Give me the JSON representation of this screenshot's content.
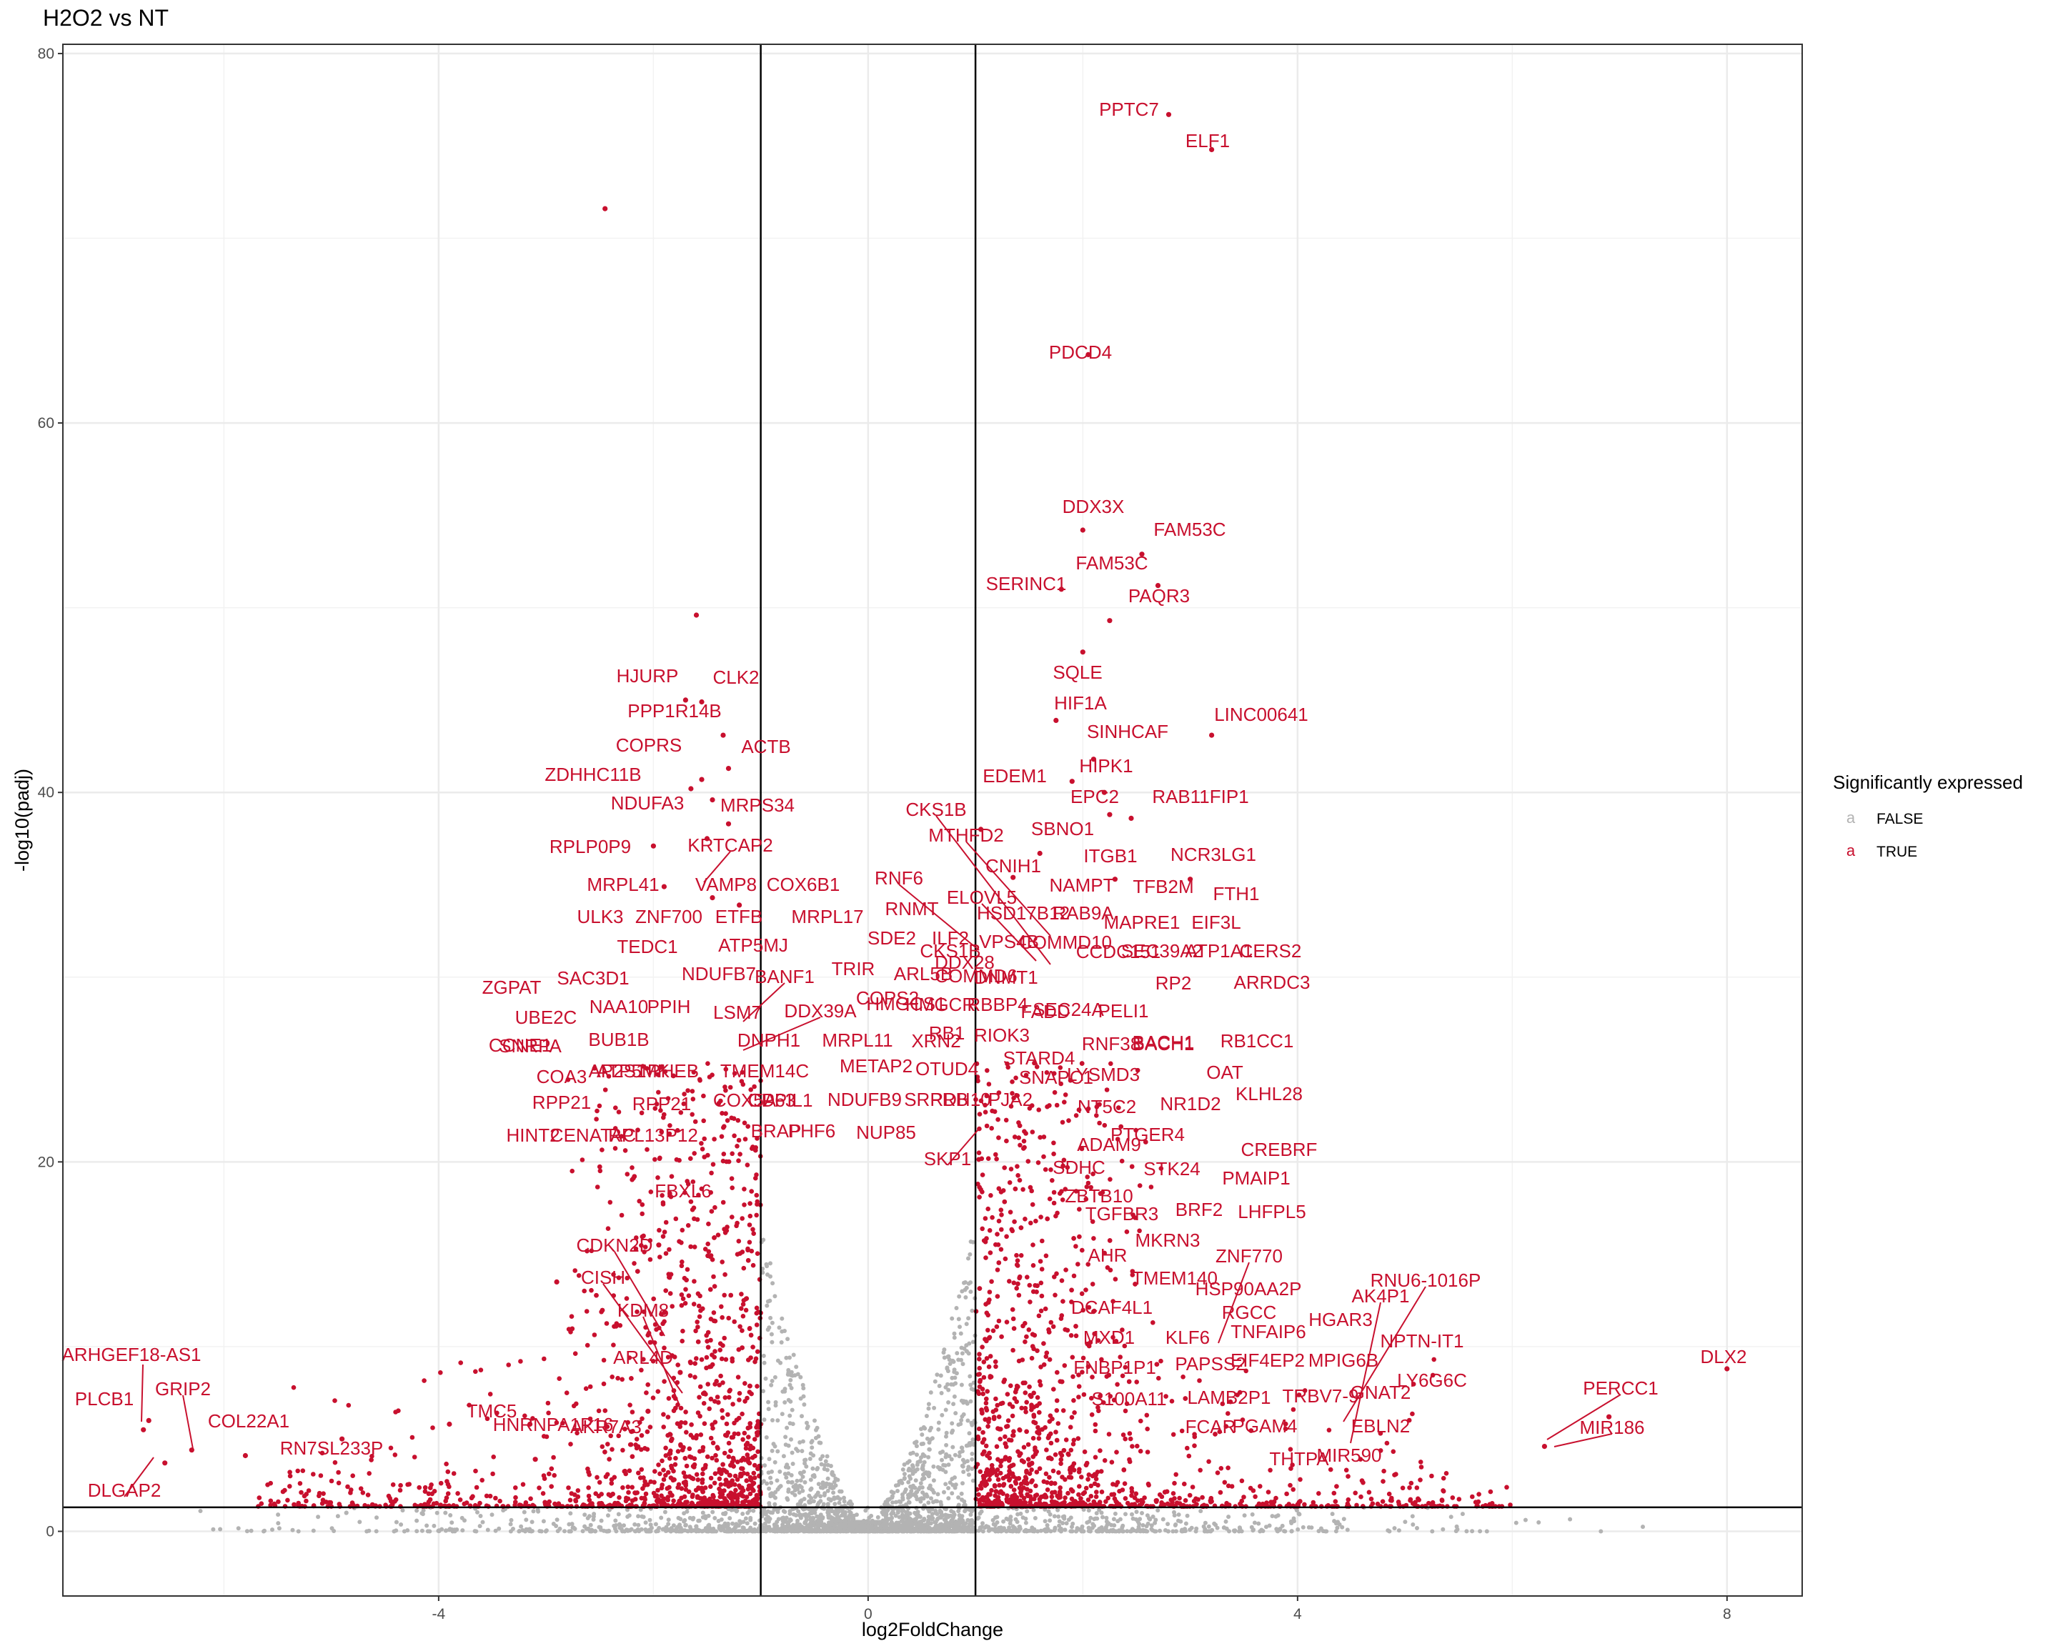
{
  "chart_data": {
    "type": "scatter",
    "title": "H2O2 vs NT",
    "xlabel": "log2FoldChange",
    "ylabel": "-log10(padj)",
    "xlim": [
      -7.5,
      8.7
    ],
    "ylim": [
      -3.5,
      80.5
    ],
    "x_ticks": [
      -4,
      0,
      4,
      8
    ],
    "y_ticks": [
      0,
      20,
      40,
      60,
      80
    ],
    "grid": true,
    "reference_lines": {
      "vertical": [
        -1,
        1
      ],
      "horizontal": [
        1.3
      ]
    },
    "legend": {
      "title": "Significantly expressed",
      "position": "right",
      "entries": [
        {
          "label": "FALSE",
          "glyph": "a",
          "color": "#b3b3b3"
        },
        {
          "label": "TRUE",
          "glyph": "a",
          "color": "#c8102e"
        }
      ]
    },
    "colors": {
      "significant": "#c8102e",
      "not_significant": "#b3b3b3"
    },
    "series": [
      {
        "name": "TRUE",
        "points": [
          {
            "gene": "PPTC7",
            "x": 2.8,
            "y": 76.7
          },
          {
            "gene": "ELF1",
            "x": 3.2,
            "y": 74.8
          },
          {
            "gene": "PDCD4",
            "x": 2.05,
            "y": 63.7
          },
          {
            "gene": "DDX3X",
            "x": 2.0,
            "y": 54.2
          },
          {
            "gene": "FAM53C",
            "x": 2.55,
            "y": 52.9
          },
          {
            "gene": "FAM53C",
            "x": 2.7,
            "y": 51.2
          },
          {
            "gene": "SERINC1",
            "x": 1.8,
            "y": 51.0
          },
          {
            "gene": "PAQR3",
            "x": 2.25,
            "y": 49.3
          },
          {
            "gene": "SQLE",
            "x": 2.0,
            "y": 47.6
          },
          {
            "gene": "HIF1A",
            "x": 1.75,
            "y": 43.9
          },
          {
            "gene": "LINC00641",
            "x": 3.2,
            "y": 43.1
          },
          {
            "gene": "SINHCAF",
            "x": 2.1,
            "y": 41.8
          },
          {
            "gene": "HIPK1",
            "x": 2.2,
            "y": 40.0
          },
          {
            "gene": "EDEM1",
            "x": 1.9,
            "y": 40.6
          },
          {
            "gene": "EPC2",
            "x": 2.25,
            "y": 38.8
          },
          {
            "gene": "RAB11FIP1",
            "x": 2.45,
            "y": 38.6
          },
          {
            "gene": "SBNO1",
            "x": 1.6,
            "y": 36.7
          },
          {
            "gene": "CKS1B",
            "x": 1.05,
            "y": 38.0
          },
          {
            "gene": "MTHFD2",
            "x": 1.35,
            "y": 35.4
          },
          {
            "gene": "ITGB1",
            "x": 2.3,
            "y": 35.3
          },
          {
            "gene": "NCR3LG1",
            "x": 3.0,
            "y": 35.3
          },
          {
            "gene": "HJURP",
            "x": -1.7,
            "y": 45.0
          },
          {
            "gene": "CLK2",
            "x": -1.55,
            "y": 44.9
          },
          {
            "gene": "PPP1R14B",
            "x": -1.35,
            "y": 43.1
          },
          {
            "gene": "COPRS",
            "x": -1.55,
            "y": 40.7
          },
          {
            "gene": "ACTB",
            "x": -1.3,
            "y": 41.3
          },
          {
            "gene": "ZDHHC11B",
            "x": -1.65,
            "y": 40.2
          },
          {
            "gene": "NDUFA3",
            "x": -1.45,
            "y": 39.6
          },
          {
            "gene": "MRPS34",
            "x": -1.3,
            "y": 38.3
          },
          {
            "gene": "KRTCAP2",
            "x": -1.5,
            "y": 37.5
          },
          {
            "gene": "RPLP0P9",
            "x": -2.0,
            "y": 37.1
          },
          {
            "gene": "MRPL41",
            "x": -1.9,
            "y": 34.9
          },
          {
            "gene": "VAMP8",
            "x": -1.45,
            "y": 34.3
          },
          {
            "gene": "COX6B1",
            "x": -1.2,
            "y": 33.9
          },
          {
            "gene": "DLX2",
            "x": 8.0,
            "y": 8.8
          },
          {
            "gene": "PERCC1",
            "x": 6.9,
            "y": 6.2
          },
          {
            "gene": "MIR186",
            "x": 6.3,
            "y": 4.6
          },
          {
            "gene": "ARHGEF18-AS1",
            "x": -6.7,
            "y": 6.0
          },
          {
            "gene": "PLCB1",
            "x": -6.75,
            "y": 5.5
          },
          {
            "gene": "GRIP2",
            "x": -6.3,
            "y": 4.4
          },
          {
            "gene": "DLGAP2",
            "x": -6.55,
            "y": 3.7
          },
          {
            "gene": "COL22A1",
            "x": -5.8,
            "y": 4.1
          },
          {
            "gene": "RN7SL233P",
            "x": -4.9,
            "y": 5.0
          },
          {
            "gene": "TMC5",
            "x": -3.15,
            "y": 5.8
          },
          {
            "gene": "HNRNPA1P16",
            "x": -3.1,
            "y": 3.9
          },
          {
            "gene": "CDKN2D",
            "x": -1.95,
            "y": 15.5
          },
          {
            "gene": "CISH",
            "x": -2.9,
            "y": 13.5
          },
          {
            "gene": "KDM8",
            "x": -1.75,
            "y": 8.6
          },
          {
            "gene": "ARL4D",
            "x": -2.05,
            "y": 6.5
          },
          {
            "gene": "unlabeled",
            "x": -2.45,
            "y": 71.6
          },
          {
            "gene": "unlabeled",
            "x": -1.6,
            "y": 49.6
          },
          {
            "gene": "unlabeled",
            "x": -3.9,
            "y": 5.8
          }
        ]
      },
      {
        "name": "FALSE",
        "points": []
      }
    ],
    "labels": [
      "PPTC7",
      "ELF1",
      "PDCD4",
      "DDX3X",
      "FAM53C",
      "SERINC1",
      "FAM53C",
      "PAQR3",
      "SQLE",
      "HIF1A",
      "LINC00641",
      "SINHCAF",
      "HIPK1",
      "EDEM1",
      "EPC2",
      "RAB11FIP1",
      "CKS1B",
      "SBNO1",
      "MTHFD2",
      "CNIH1",
      "ITGB1",
      "NCR3LG1",
      "NAMPT",
      "TFB2M",
      "RNF6",
      "ELOVL5",
      "FTH1",
      "RNMT",
      "HSD17B12",
      "RAB9A",
      "MAPRE1",
      "EIF3L",
      "SDE2",
      "ILF2",
      "VPS4B",
      "COMMD10",
      "CCDC151",
      "SEC39A2",
      "ATP1A1",
      "CERS2",
      "CKS1B",
      "DNMT1",
      "HMGCR",
      "RBBP4",
      "FADD",
      "ARRDC3",
      "RP2",
      "COPS2",
      "SEC24A",
      "PELI1",
      "RNF38",
      "BACH1",
      "BACH1",
      "RB1CC1",
      "TRIR",
      "ARL5B",
      "COMMD6",
      "DDX28",
      "RB1",
      "RIOK3",
      "XRN2",
      "METAP2",
      "OTUD4",
      "STARD4",
      "SNAPC1",
      "LYSMD3",
      "OAT",
      "SRPRB",
      "RDH10",
      "PJA2",
      "NT5C2",
      "NR1D2",
      "KLHL28",
      "HMGCS1",
      "PTGER4",
      "SKP1",
      "ADAM9",
      "CREBRF",
      "SDHC",
      "STK24",
      "PMAIP1",
      "ZBTB10",
      "LHFPL5",
      "TGFBR3",
      "BRF2",
      "MKRN3",
      "AHR",
      "ZNF770",
      "TMEM140",
      "HSP90AA2P",
      "RNU6-1016P",
      "AK4P1",
      "DCAF4L1",
      "RGCC",
      "HGAR3",
      "MXD1",
      "KLF6",
      "TNFAIP6",
      "NPTN-IT1",
      "FNBP1P1",
      "PAPSS2",
      "EIF4EP2",
      "MPIG6B",
      "LY6G6C",
      "S100A11",
      "LAMB2P1",
      "TRBV7-9",
      "GNAT2",
      "FCAR",
      "PGAM4",
      "EBLN2",
      "THTPA",
      "MIR590",
      "DLX2",
      "PERCC1",
      "MIR186",
      "HJURP",
      "CLK2",
      "PPP1R14B",
      "COPRS",
      "ACTB",
      "ZDHHC11B",
      "NDUFA3",
      "MRPS34",
      "KRTCAP2",
      "RPLP0P9",
      "MRPL41",
      "VAMP8",
      "COX6B1",
      "MRPL17",
      "ULK3",
      "ZNF700",
      "ETFB",
      "TEDC1",
      "ATP5MJ",
      "NDUFB7",
      "BANF1",
      "SAC3D1",
      "ZGPAT",
      "NAA10",
      "PPIH",
      "LSM7",
      "DDX39A",
      "UBE2C",
      "SNRPA",
      "BUB1B",
      "DNPH1",
      "MRPL11",
      "CCNE1",
      "COA3",
      "ATP5MK",
      "RHEB",
      "TMEM14C",
      "AP2S1",
      "COX5A",
      "PPIL1",
      "CD63",
      "NDUFB9",
      "NUP85",
      "RPP21",
      "RPP21",
      "HINT2",
      "CENATAC",
      "RPL13P12",
      "BRAP",
      "PHF6",
      "FBXL6",
      "CDKN2D",
      "CISH",
      "KDM8",
      "ARL4D",
      "AKR7A3",
      "TMC5",
      "HNRNPA1P16",
      "ARHGEF18-AS1",
      "PLCB1",
      "GRIP2",
      "COL22A1",
      "RN7SL233P",
      "DLGAP2"
    ]
  }
}
